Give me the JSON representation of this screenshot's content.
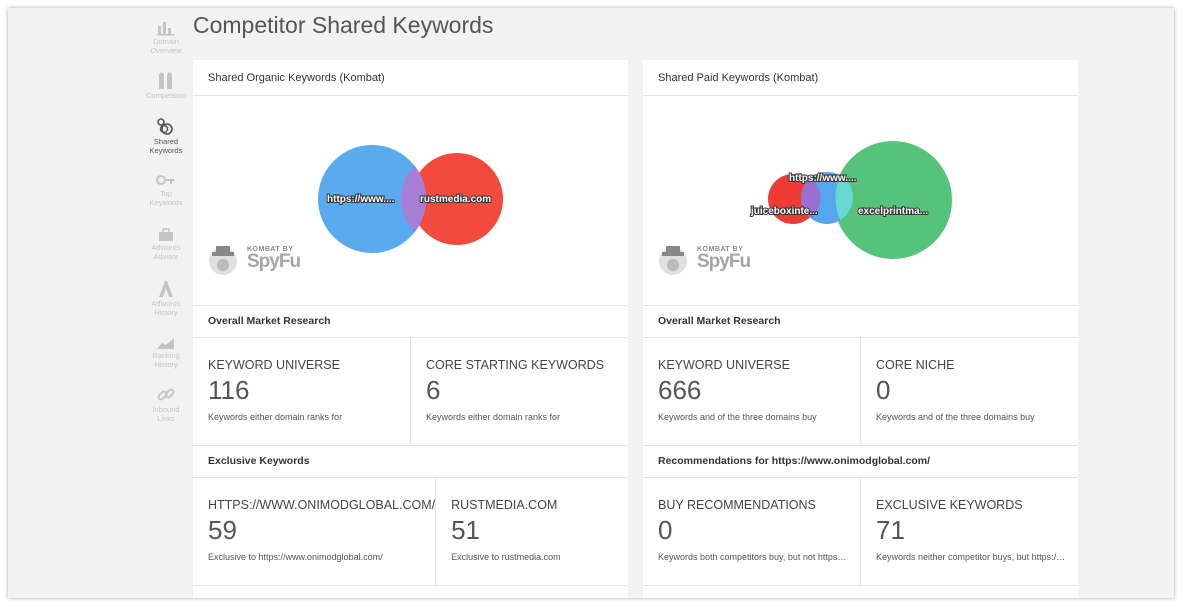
{
  "page": {
    "title": "Competitor Shared Keywords"
  },
  "sidebar": {
    "items": [
      {
        "label_line1": "Domain",
        "label_line2": "Overview",
        "icon": "bar-chart-icon",
        "active": false
      },
      {
        "label_line1": "Competition",
        "label_line2": "",
        "icon": "competition-icon",
        "active": false
      },
      {
        "label_line1": "Shared",
        "label_line2": "Keywords",
        "icon": "shared-keywords-icon",
        "active": true
      },
      {
        "label_line1": "Top",
        "label_line2": "Keywords",
        "icon": "key-icon",
        "active": false
      },
      {
        "label_line1": "Adwords",
        "label_line2": "Advisor",
        "icon": "briefcase-icon",
        "active": false
      },
      {
        "label_line1": "Adwords",
        "label_line2": "History",
        "icon": "adwords-icon",
        "active": false
      },
      {
        "label_line1": "Ranking",
        "label_line2": "History",
        "icon": "ranking-chart-icon",
        "active": false
      },
      {
        "label_line1": "Inbound",
        "label_line2": "Links",
        "icon": "link-icon",
        "active": false
      }
    ]
  },
  "organic": {
    "header": "Shared Organic Keywords (Kombat)",
    "venn": {
      "circles": [
        {
          "label": "https://www....",
          "color": "#5aaaf0"
        },
        {
          "label": "rustmedia.com",
          "color": "#f24a3d"
        }
      ],
      "overlap_color": "#a77fd6"
    },
    "logo": {
      "small": "KOMBAT BY",
      "big": "SpyFu"
    },
    "market_research": {
      "title": "Overall Market Research",
      "stats": [
        {
          "label": "KEYWORD UNIVERSE",
          "value": "116",
          "desc": "Keywords either domain ranks for"
        },
        {
          "label": "CORE STARTING KEYWORDS",
          "value": "6",
          "desc": "Keywords either domain ranks for"
        }
      ]
    },
    "exclusive": {
      "title": "Exclusive Keywords",
      "stats": [
        {
          "label": "HTTPS://WWW.ONIMODGLOBAL.COM/",
          "value": "59",
          "desc": "Exclusive to https://www.onimodglobal.com/"
        },
        {
          "label": "RUSTMEDIA.COM",
          "value": "51",
          "desc": "Exclusive to rustmedia.com"
        }
      ]
    }
  },
  "paid": {
    "header": "Shared Paid Keywords (Kombat)",
    "venn": {
      "circles": [
        {
          "label": "juiceboxinte...",
          "color": "#ee3b33"
        },
        {
          "label": "https://www....",
          "color": "#55a6ee"
        },
        {
          "label": "excelprintma...",
          "color": "#55c47a"
        }
      ],
      "overlap_colors": [
        "#9a6fd0",
        "#66d9d4"
      ]
    },
    "logo": {
      "small": "KOMBAT BY",
      "big": "SpyFu"
    },
    "market_research": {
      "title": "Overall Market Research",
      "stats": [
        {
          "label": "KEYWORD UNIVERSE",
          "value": "666",
          "desc": "Keywords and of the three domains buy"
        },
        {
          "label": "CORE NICHE",
          "value": "0",
          "desc": "Keywords and of the three domains buy"
        }
      ]
    },
    "recommendations": {
      "title": "Recommendations for https://www.onimodglobal.com/",
      "stats": [
        {
          "label": "BUY RECOMMENDATIONS",
          "value": "0",
          "desc": "Keywords both competitors buy, but not https://www.onimodglobal.com/"
        },
        {
          "label": "EXCLUSIVE KEYWORDS",
          "value": "71",
          "desc": "Keywords neither competitor buys, but https://www.onimodglobal.com/ ranks for"
        }
      ]
    }
  }
}
